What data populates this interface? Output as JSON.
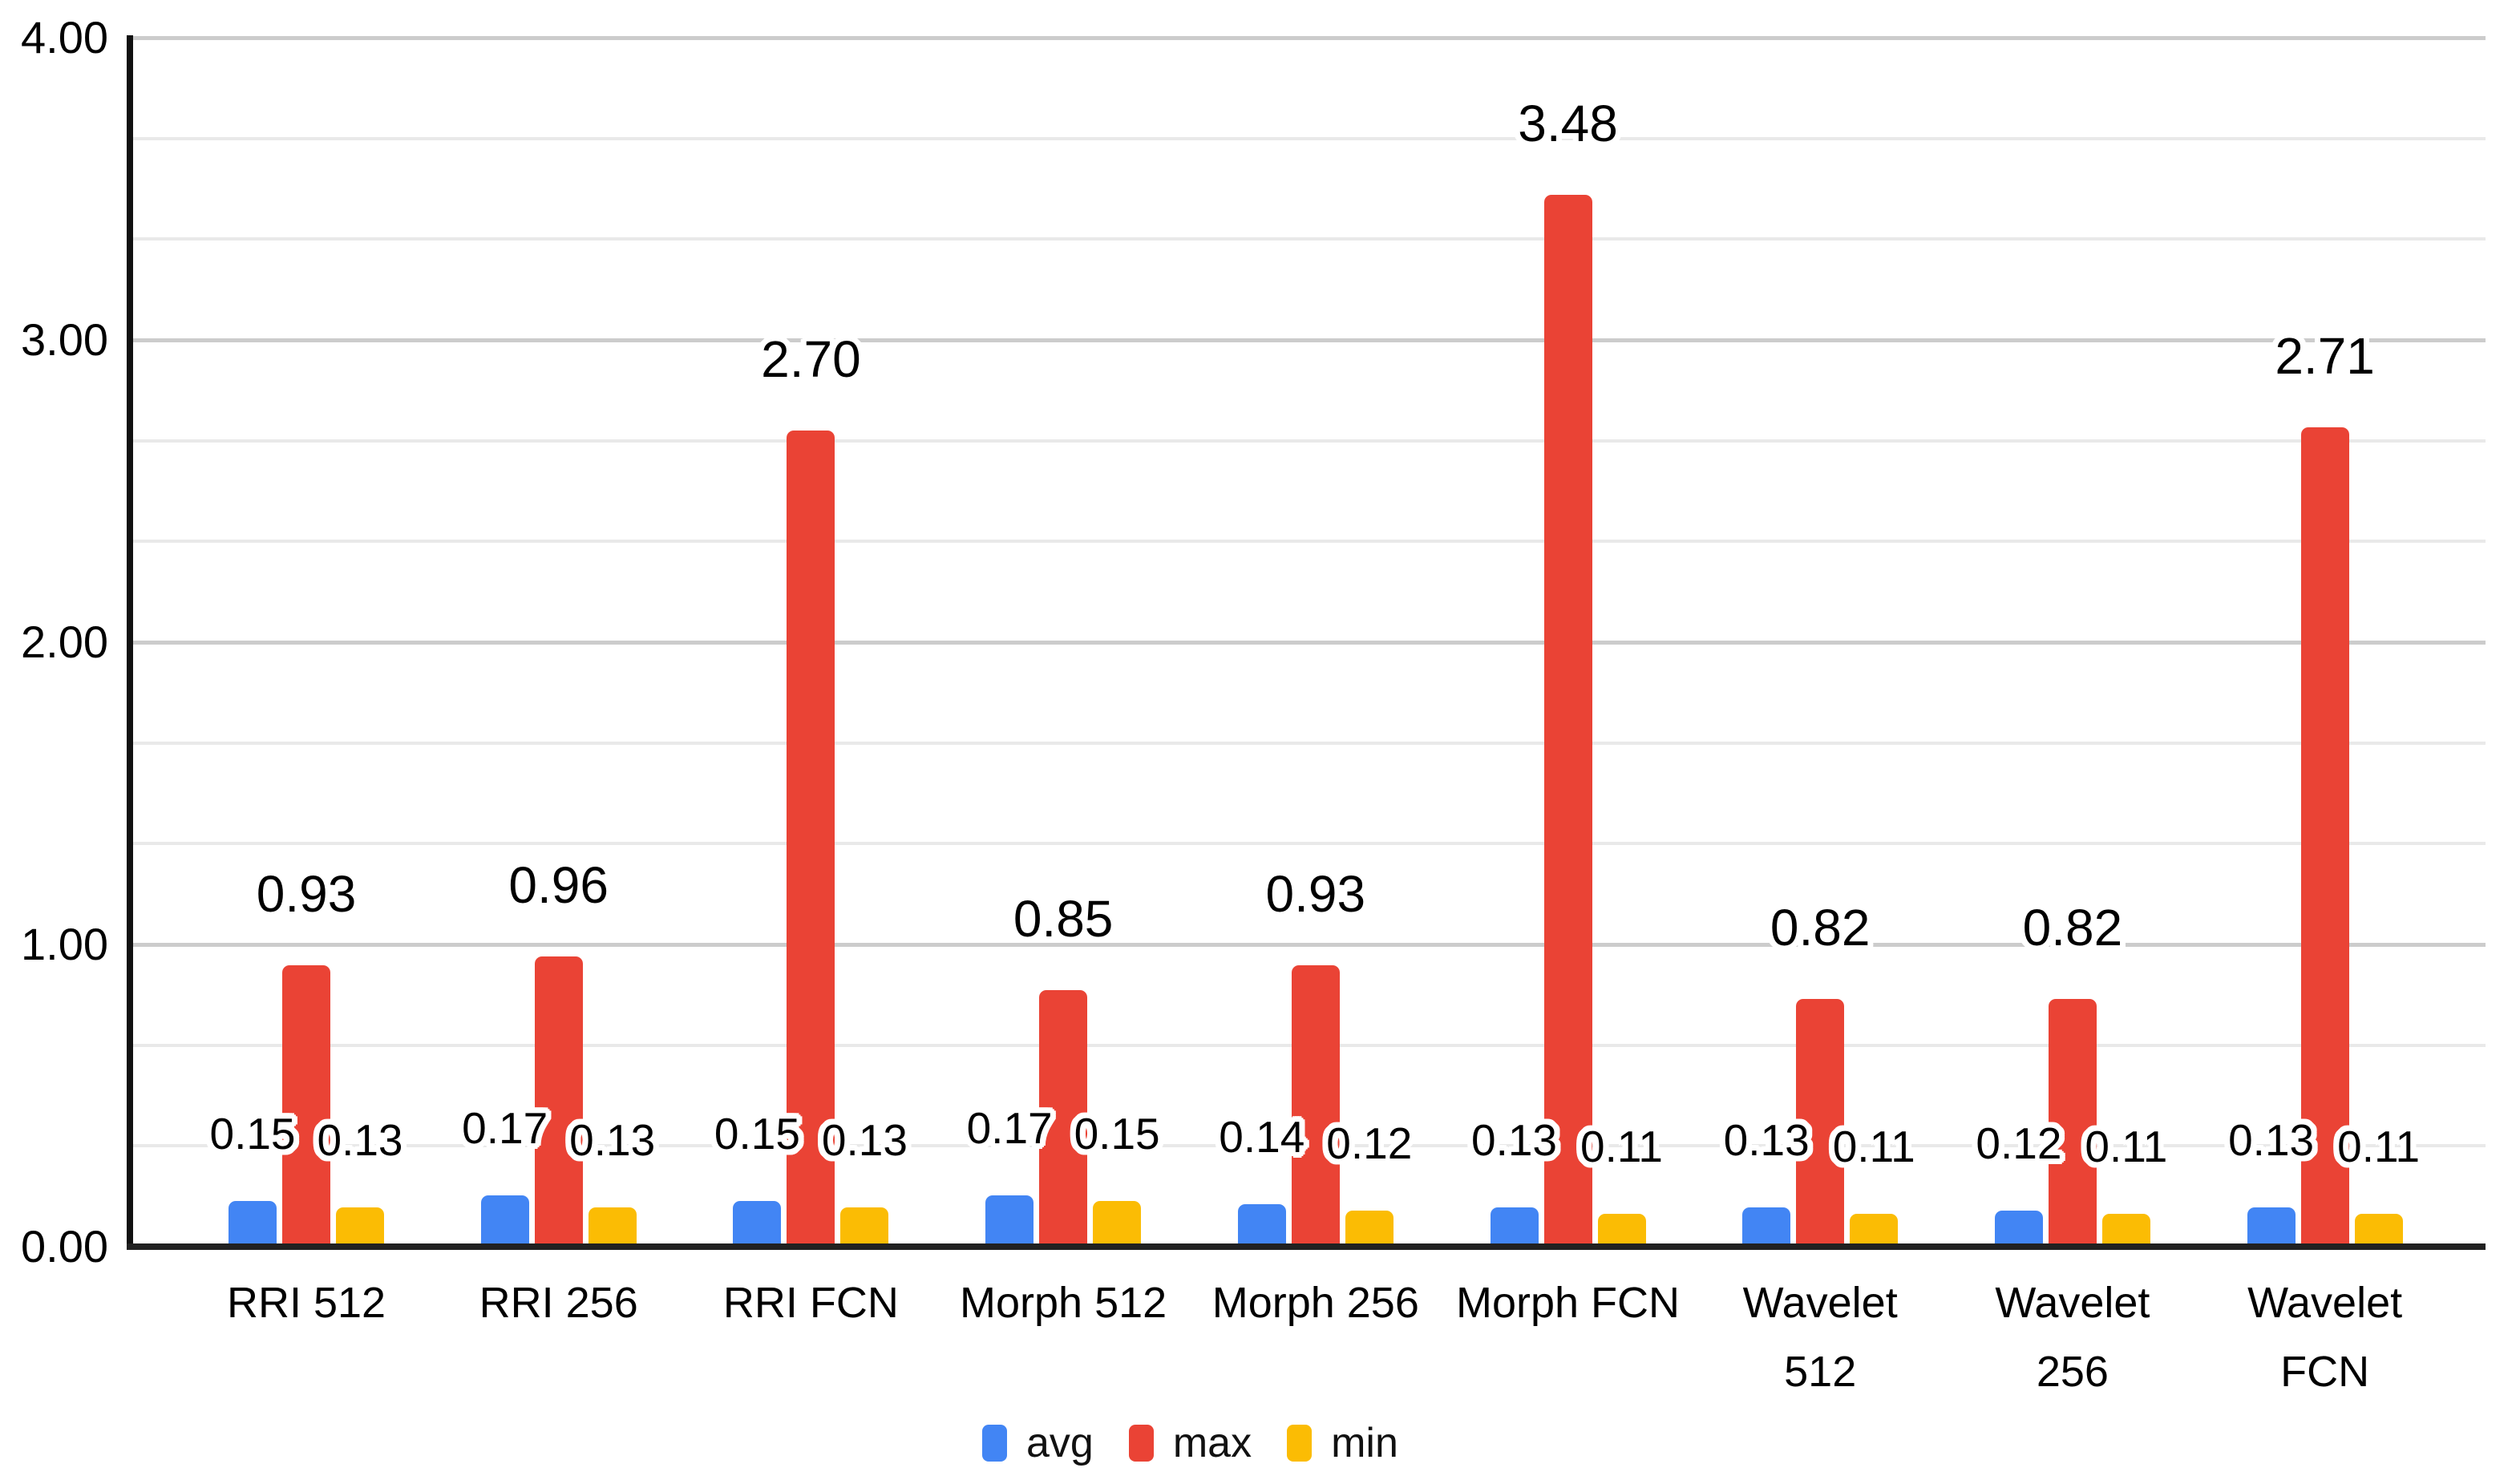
{
  "chart_data": {
    "type": "bar",
    "title": "",
    "xlabel": "",
    "ylabel": "",
    "categories": [
      "RRI 512",
      "RRI 256",
      "RRI FCN",
      "Morph 512",
      "Morph 256",
      "Morph FCN",
      "Wavelet 512",
      "Wavelet 256",
      "Wavelet FCN"
    ],
    "category_label_lines": [
      [
        "RRI 512"
      ],
      [
        "RRI 256"
      ],
      [
        "RRI FCN"
      ],
      [
        "Morph 512"
      ],
      [
        "Morph 256"
      ],
      [
        "Morph FCN"
      ],
      [
        "Wavelet",
        "512"
      ],
      [
        "Wavelet",
        "256"
      ],
      [
        "Wavelet",
        "FCN"
      ]
    ],
    "series": [
      {
        "name": "avg",
        "color": "#4285F4",
        "values": [
          0.15,
          0.17,
          0.15,
          0.17,
          0.14,
          0.13,
          0.13,
          0.12,
          0.13
        ]
      },
      {
        "name": "max",
        "color": "#EA4335",
        "values": [
          0.93,
          0.96,
          2.7,
          0.85,
          0.93,
          3.48,
          0.82,
          0.82,
          2.71
        ]
      },
      {
        "name": "min",
        "color": "#FBBC04",
        "values": [
          0.13,
          0.13,
          0.13,
          0.15,
          0.12,
          0.11,
          0.11,
          0.11,
          0.11
        ]
      }
    ],
    "data_labels_visible": true,
    "value_label_format": "0.00",
    "ylim": [
      0,
      4
    ],
    "ytick_values": [
      0,
      1,
      2,
      3,
      4
    ],
    "ytick_labels": [
      "0.00",
      "1.00",
      "2.00",
      "3.00",
      "4.00"
    ],
    "minor_gridlines_between_majors": 2,
    "grid": "horizontal",
    "legend_position": "bottom"
  },
  "legend": {
    "items": [
      {
        "label": "avg",
        "color": "#4285F4"
      },
      {
        "label": "max",
        "color": "#EA4335"
      },
      {
        "label": "min",
        "color": "#FBBC04"
      }
    ]
  },
  "style_colors": {
    "background": "#ffffff",
    "major_gridline": "#cccccc",
    "minor_gridline": "#e9e9e9",
    "baseline": "#212121",
    "y_axis_line": "#111111",
    "text": "#000000",
    "label_halo": "#ffffff"
  }
}
